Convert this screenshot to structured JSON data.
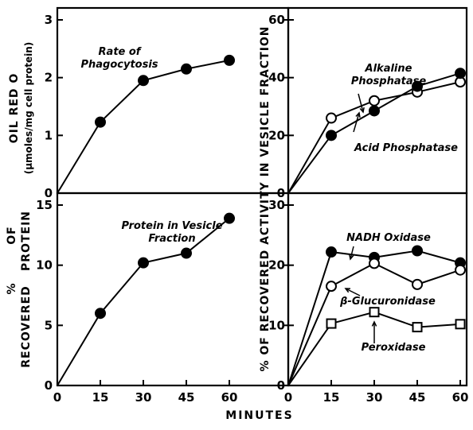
{
  "chart_data": [
    {
      "type": "line",
      "ylabel": [
        "OIL RED O",
        "(μmoles/mg cell protein)"
      ],
      "ylim": [
        0,
        3
      ],
      "yticks": [
        "0",
        "1",
        "2",
        "3"
      ],
      "series": [
        {
          "name": "Rate of Phagocytosis",
          "name_lines": [
            "Rate of",
            "Phagocytosis"
          ],
          "marker": "filled-circle",
          "x": [
            15,
            30,
            45,
            60
          ],
          "y": [
            1.23,
            1.95,
            2.15,
            2.3
          ]
        }
      ]
    },
    {
      "type": "line",
      "ylim": [
        0,
        60
      ],
      "yticks": [
        "0",
        "20",
        "40",
        "60"
      ],
      "series": [
        {
          "name": "Alkaline Phosphatase",
          "name_lines": [
            "Alkaline",
            "Phosphatase"
          ],
          "marker": "open-circle",
          "x": [
            15,
            30,
            45,
            60
          ],
          "y": [
            26,
            32,
            35,
            38.5
          ]
        },
        {
          "name": "Acid Phosphatase",
          "name_lines": [
            "Acid Phosphatase"
          ],
          "marker": "filled-circle",
          "x": [
            15,
            30,
            45,
            60
          ],
          "y": [
            20,
            28.5,
            37,
            41.5
          ]
        }
      ]
    },
    {
      "type": "line",
      "ylabel": [
        "%",
        "OF",
        "PROTEIN",
        "RECOVERED"
      ],
      "ylim": [
        0,
        15
      ],
      "yticks": [
        "0",
        "5",
        "10",
        "15"
      ],
      "series": [
        {
          "name": "Protein in Vesicle Fraction",
          "name_lines": [
            "Protein in Vesicle",
            "Fraction"
          ],
          "marker": "filled-circle",
          "x": [
            15,
            30,
            45,
            60
          ],
          "y": [
            6,
            10.2,
            11,
            13.9
          ]
        }
      ]
    },
    {
      "type": "line",
      "ylim": [
        0,
        30
      ],
      "yticks": [
        "0",
        "10",
        "20",
        "30"
      ],
      "series": [
        {
          "name": "NADH Oxidase",
          "name_lines": [
            "NADH Oxidase"
          ],
          "marker": "filled-circle",
          "x": [
            15,
            30,
            45,
            60
          ],
          "y": [
            22.2,
            21.3,
            22.4,
            20.4
          ]
        },
        {
          "name": "β-Glucuronidase",
          "name_lines": [
            "β-Glucuronidase"
          ],
          "marker": "open-circle",
          "x": [
            15,
            30,
            45,
            60
          ],
          "y": [
            16.5,
            20.3,
            16.8,
            19.2
          ]
        },
        {
          "name": "Peroxidase",
          "name_lines": [
            "Peroxidase"
          ],
          "marker": "open-square",
          "x": [
            15,
            30,
            45,
            60
          ],
          "y": [
            10.3,
            12.2,
            9.7,
            10.2
          ]
        }
      ]
    }
  ],
  "shared_ylabel": "% OF RECOVERED ACTIVITY IN VESICLE FRACTION",
  "xlabel": "MINUTES",
  "xticks": [
    "0",
    "15",
    "30",
    "45",
    "60"
  ],
  "xlim": [
    0,
    60
  ]
}
